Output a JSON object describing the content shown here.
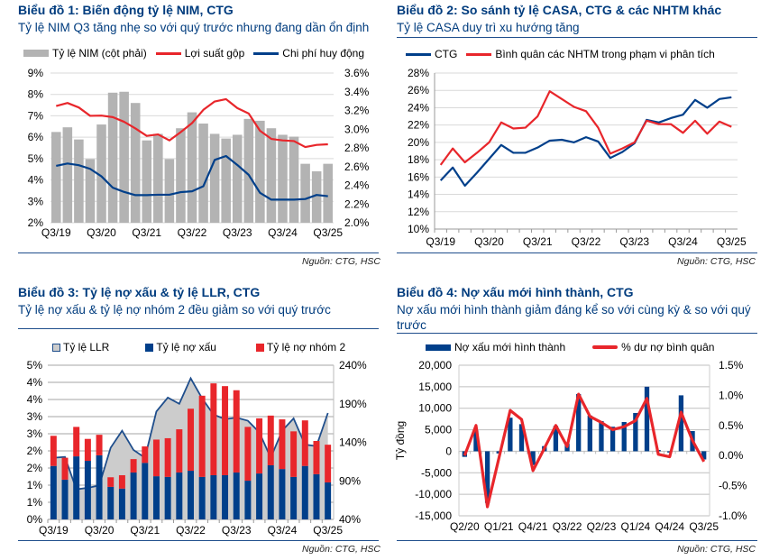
{
  "chart_data": [
    {
      "id": "chart1",
      "type": "bar",
      "title": "Biểu đồ 1: Biến động tỷ lệ NIM, CTG",
      "subtitle": "Tỷ lệ NIM Q3 tăng nhẹ so với quý trước nhưng đang dần ổn định",
      "categories": [
        "Q3/19",
        "Q4/19",
        "Q1/20",
        "Q2/20",
        "Q3/20",
        "Q4/20",
        "Q1/21",
        "Q2/21",
        "Q3/21",
        "Q4/21",
        "Q1/22",
        "Q2/22",
        "Q3/22",
        "Q4/22",
        "Q1/23",
        "Q2/23",
        "Q3/23",
        "Q4/23",
        "Q1/24",
        "Q2/24",
        "Q3/24",
        "Q4/24",
        "Q1/25",
        "Q2/25",
        "Q3/25"
      ],
      "x_tick_labels": [
        "Q3/19",
        "Q3/20",
        "Q3/21",
        "Q3/22",
        "Q3/23",
        "Q3/24",
        "Q3/25"
      ],
      "series": [
        {
          "name": "Tỷ lệ NIM (cột phải)",
          "type": "bar",
          "axis": "right",
          "color": "#b3b3b3",
          "values": [
            2.97,
            3.02,
            2.89,
            2.68,
            3.05,
            3.39,
            3.4,
            3.28,
            2.88,
            2.95,
            2.68,
            3.01,
            3.18,
            3.06,
            2.95,
            2.9,
            2.94,
            3.11,
            3.09,
            3.01,
            2.94,
            2.92,
            2.63,
            2.55,
            2.63
          ]
        },
        {
          "name": "Lợi suất gộp",
          "type": "line",
          "axis": "left",
          "color": "#e8262b",
          "values": [
            7.46,
            7.6,
            7.39,
            7.0,
            7.01,
            6.94,
            6.72,
            6.41,
            6.06,
            6.13,
            5.85,
            6.24,
            6.66,
            7.28,
            7.67,
            7.78,
            7.36,
            7.11,
            6.3,
            5.92,
            5.85,
            5.82,
            5.54,
            5.64,
            5.67
          ]
        },
        {
          "name": "Chi phí huy động",
          "type": "line",
          "axis": "left",
          "color": "#003f8a",
          "values": [
            4.66,
            4.77,
            4.69,
            4.52,
            4.17,
            3.64,
            3.44,
            3.29,
            3.29,
            3.31,
            3.31,
            3.43,
            3.47,
            3.71,
            4.94,
            5.12,
            4.7,
            4.24,
            3.4,
            3.08,
            3.08,
            3.08,
            3.11,
            3.3,
            3.24
          ]
        }
      ],
      "y_left": {
        "min": 2,
        "max": 9,
        "ticks": [
          "2%",
          "3%",
          "4%",
          "5%",
          "6%",
          "7%",
          "8%",
          "9%"
        ]
      },
      "y_right": {
        "min": 2.0,
        "max": 3.6,
        "ticks": [
          "2.0%",
          "2.2%",
          "2.4%",
          "2.6%",
          "2.8%",
          "3.0%",
          "3.2%",
          "3.4%",
          "3.6%"
        ]
      },
      "grid": true,
      "legend": "top",
      "source": "Nguồn: CTG, HSC"
    },
    {
      "id": "chart2",
      "type": "line",
      "title": "Biểu đồ 2: So sánh tỷ lệ CASA, CTG & các NHTM khác",
      "subtitle": "Tỷ lệ CASA duy trì xu hướng tăng",
      "categories": [
        "Q3/19",
        "Q4/19",
        "Q1/20",
        "Q2/20",
        "Q3/20",
        "Q4/20",
        "Q1/21",
        "Q2/21",
        "Q3/21",
        "Q4/21",
        "Q1/22",
        "Q2/22",
        "Q3/22",
        "Q4/22",
        "Q1/23",
        "Q2/23",
        "Q3/23",
        "Q4/23",
        "Q1/24",
        "Q2/24",
        "Q3/24",
        "Q4/24",
        "Q1/25",
        "Q2/25",
        "Q3/25"
      ],
      "x_tick_labels": [
        "Q3/19",
        "Q3/20",
        "Q3/21",
        "Q3/22",
        "Q3/23",
        "Q3/24",
        "Q3/25"
      ],
      "series": [
        {
          "name": "CTG",
          "color": "#003f8a",
          "values": [
            15.6,
            17.1,
            15.0,
            16.5,
            18.1,
            19.7,
            18.8,
            18.8,
            19.4,
            20.2,
            20.3,
            20.0,
            20.6,
            20.1,
            18.2,
            18.9,
            19.9,
            22.6,
            22.3,
            22.8,
            23.2,
            24.9,
            24.0,
            25.0,
            25.2
          ]
        },
        {
          "name": "Bình quân các NHTM trong phạm vi phân tích",
          "color": "#e8262b",
          "values": [
            17.4,
            19.3,
            17.7,
            18.8,
            20.0,
            22.3,
            21.6,
            21.7,
            23.0,
            25.9,
            25.0,
            24.1,
            23.6,
            21.7,
            18.7,
            19.3,
            20.0,
            22.5,
            22.1,
            22.1,
            21.1,
            22.5,
            21.0,
            22.4,
            21.8
          ]
        }
      ],
      "y_left": {
        "min": 10,
        "max": 28,
        "ticks": [
          "10%",
          "12%",
          "14%",
          "16%",
          "18%",
          "20%",
          "22%",
          "24%",
          "26%",
          "28%"
        ]
      },
      "grid": true,
      "legend": "top",
      "source": "Nguồn: CTG, HSC"
    },
    {
      "id": "chart3",
      "type": "bar",
      "title": "Biểu đồ 3: Tỷ lệ nợ xấu & tỷ lệ LLR, CTG",
      "subtitle": "Tỷ lệ nợ xấu & tỷ lệ nợ nhóm 2 đều giảm so với quý trước",
      "categories": [
        "Q3/19",
        "Q4/19",
        "Q1/20",
        "Q2/20",
        "Q3/20",
        "Q4/20",
        "Q1/21",
        "Q2/21",
        "Q3/21",
        "Q4/21",
        "Q1/22",
        "Q2/22",
        "Q3/22",
        "Q4/22",
        "Q1/23",
        "Q2/23",
        "Q3/23",
        "Q4/23",
        "Q1/24",
        "Q2/24",
        "Q3/24",
        "Q4/24",
        "Q1/25",
        "Q2/25",
        "Q3/25"
      ],
      "x_tick_labels": [
        "Q3/19",
        "Q3/20",
        "Q3/21",
        "Q3/22",
        "Q3/23",
        "Q3/24",
        "Q3/25"
      ],
      "series": [
        {
          "name": "Tỷ lệ LLR",
          "type": "area",
          "axis": "right",
          "color": "#cccccc",
          "edge_color": "#1f4e8c",
          "values": [
            120,
            121,
            79,
            81,
            84,
            133,
            155,
            130,
            120,
            180,
            198,
            190,
            223,
            197,
            176,
            170,
            172,
            168,
            153,
            120,
            155,
            171,
            137,
            135,
            178
          ]
        },
        {
          "name": "Tỷ lệ nợ xấu",
          "type": "bar",
          "stack": "s",
          "axis": "left",
          "color": "#003f8a",
          "values": [
            1.56,
            1.16,
            1.84,
            1.71,
            1.87,
            0.95,
            0.9,
            1.37,
            1.65,
            1.26,
            1.24,
            1.37,
            1.42,
            1.24,
            1.29,
            1.29,
            1.37,
            1.13,
            1.34,
            1.58,
            1.47,
            1.24,
            1.56,
            1.32,
            1.08
          ]
        },
        {
          "name": "Tỷ lệ nợ nhóm 2",
          "type": "bar",
          "stack": "s",
          "axis": "left",
          "color": "#e8262b",
          "values": [
            0.88,
            0.64,
            0.86,
            0.64,
            0.6,
            0.28,
            0.39,
            0.39,
            0.48,
            1.07,
            1.13,
            1.26,
            1.81,
            2.37,
            2.68,
            2.6,
            2.4,
            1.57,
            1.61,
            1.45,
            1.45,
            1.33,
            1.33,
            0.97,
            1.1
          ]
        }
      ],
      "y_left": {
        "min": 0,
        "max": 4.5,
        "ticks": [
          "0%",
          "1%",
          "1%",
          "2%",
          "2%",
          "3%",
          "3%",
          "4%",
          "4%",
          "5%"
        ]
      },
      "y_right": {
        "min": 40,
        "max": 240,
        "ticks": [
          "40%",
          "90%",
          "140%",
          "190%",
          "240%"
        ]
      },
      "grid": true,
      "legend": "top",
      "source": "Nguồn: CTG, HSC"
    },
    {
      "id": "chart4",
      "type": "bar",
      "title": "Biểu đồ 4: Nợ xấu mới hình thành, CTG",
      "subtitle": "Nợ xấu mới hình thành giảm đáng kể so với cùng kỳ & so với quý trước",
      "categories": [
        "Q2/20",
        "Q3/20",
        "Q4/20",
        "Q1/21",
        "Q2/21",
        "Q3/21",
        "Q4/21",
        "Q1/22",
        "Q2/22",
        "Q3/22",
        "Q4/22",
        "Q1/23",
        "Q2/23",
        "Q3/23",
        "Q4/23",
        "Q1/24",
        "Q2/24",
        "Q3/24",
        "Q4/24",
        "Q1/25",
        "Q2/25",
        "Q3/25"
      ],
      "x_tick_labels": [
        "Q2/20",
        "Q1/21",
        "Q4/21",
        "Q3/22",
        "Q2/23",
        "Q1/24",
        "Q4/24",
        "Q3/25"
      ],
      "series": [
        {
          "name": "Nợ xấu mới hình thành",
          "type": "bar",
          "axis": "left",
          "color": "#003f8a",
          "values": [
            -1300,
            4800,
            -12000,
            -500,
            7800,
            6300,
            -3200,
            1200,
            5900,
            1800,
            13300,
            8300,
            7000,
            5700,
            6800,
            8900,
            15000,
            300,
            -300,
            13000,
            4700,
            -1900
          ]
        },
        {
          "name": "% dư nợ bình quân",
          "type": "line",
          "axis": "right",
          "color": "#e8262b",
          "values": [
            0.0,
            0.5,
            -0.85,
            -0.05,
            0.75,
            0.6,
            -0.25,
            0.12,
            0.5,
            0.15,
            1.02,
            0.65,
            0.55,
            0.43,
            0.48,
            0.58,
            0.95,
            0.02,
            -0.02,
            0.72,
            0.25,
            -0.1
          ]
        }
      ],
      "ylabel": "Tỷ đồng",
      "y_left": {
        "min": -15000,
        "max": 20000,
        "ticks": [
          "-15,000",
          "-10,000",
          "-5,000",
          "0",
          "5,000",
          "10,000",
          "15,000",
          "20,000"
        ]
      },
      "y_right": {
        "min": -1.0,
        "max": 1.5,
        "ticks": [
          "-1.0%",
          "-0.5%",
          "0.0%",
          "0.5%",
          "1.0%",
          "1.5%"
        ]
      },
      "grid": true,
      "legend": "top",
      "source": "Nguồn: CTG, HSC"
    }
  ]
}
